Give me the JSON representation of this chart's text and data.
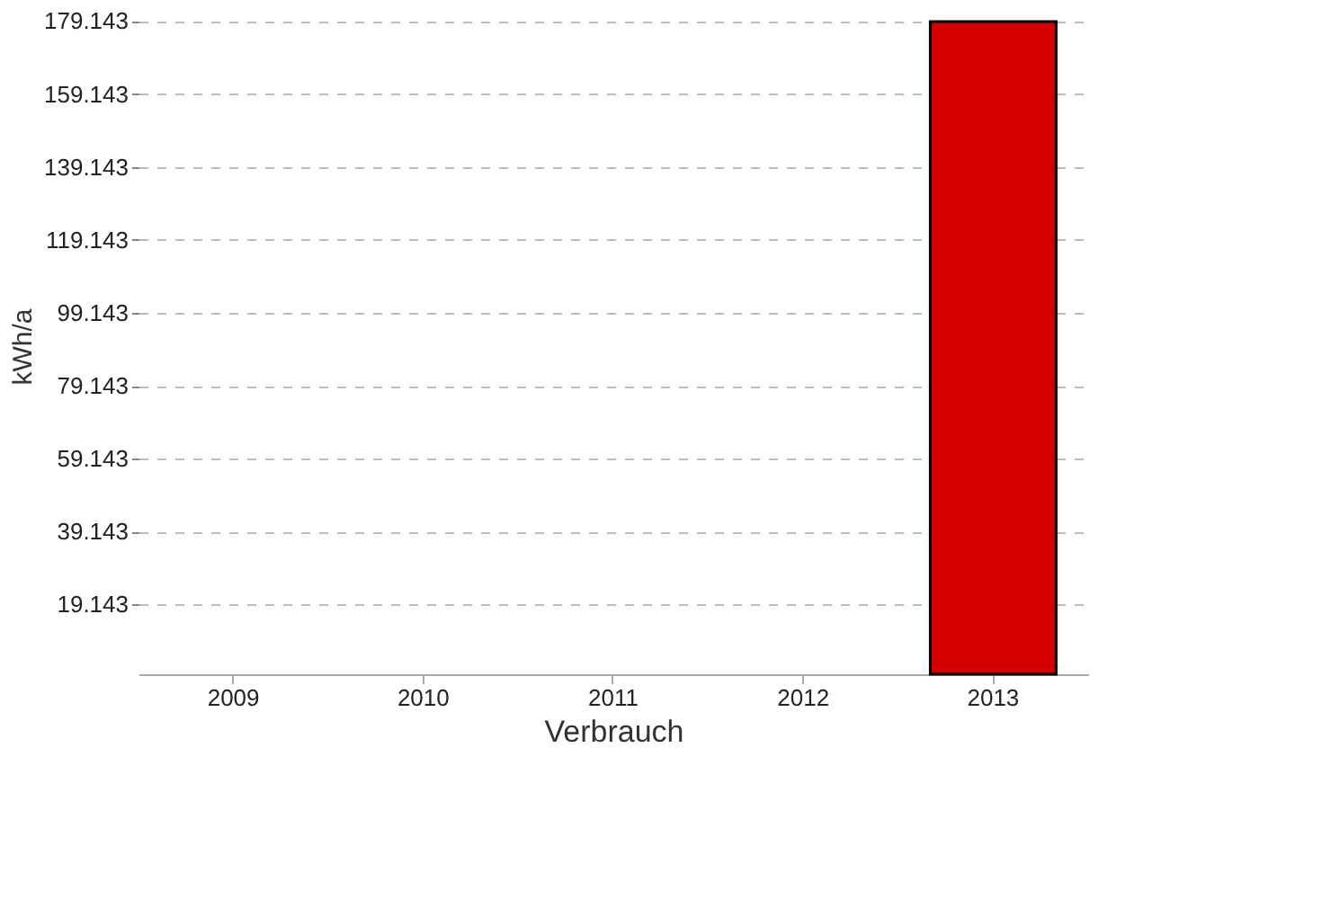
{
  "chart_data": {
    "type": "bar",
    "categories": [
      "2009",
      "2010",
      "2011",
      "2012",
      "2013"
    ],
    "values": [
      null,
      null,
      null,
      null,
      179
    ],
    "color": "#d40000",
    "xlabel": "Verbrauch",
    "ylabel": "kWh/a",
    "ylim": [
      0,
      180
    ],
    "yticks": [
      19.143,
      39.143,
      59.143,
      79.143,
      99.143,
      119.143,
      139.143,
      159.143,
      179.143
    ],
    "grid": "y"
  }
}
